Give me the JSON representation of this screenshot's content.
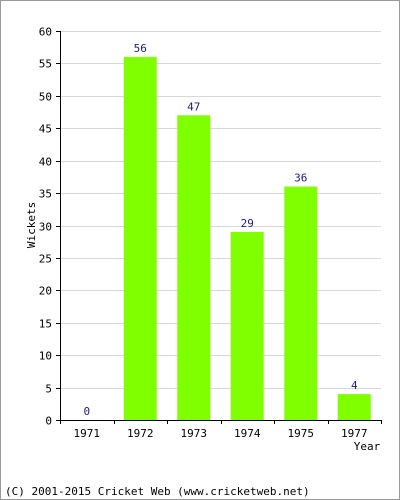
{
  "chart_data": {
    "type": "bar",
    "categories": [
      "1971",
      "1972",
      "1973",
      "1974",
      "1975",
      "1977"
    ],
    "values": [
      0,
      56,
      47,
      29,
      36,
      4
    ],
    "title": "",
    "xlabel": "Year",
    "ylabel": "Wickets",
    "ylim": [
      0,
      60
    ],
    "yticks": [
      0,
      5,
      10,
      15,
      20,
      25,
      30,
      35,
      40,
      45,
      50,
      55,
      60
    ],
    "grid": true,
    "bar_color": "#80ff00",
    "data_label_color": "#1a1a8c"
  },
  "footer": {
    "copyright": "(C) 2001-2015 Cricket Web (www.cricketweb.net)"
  }
}
